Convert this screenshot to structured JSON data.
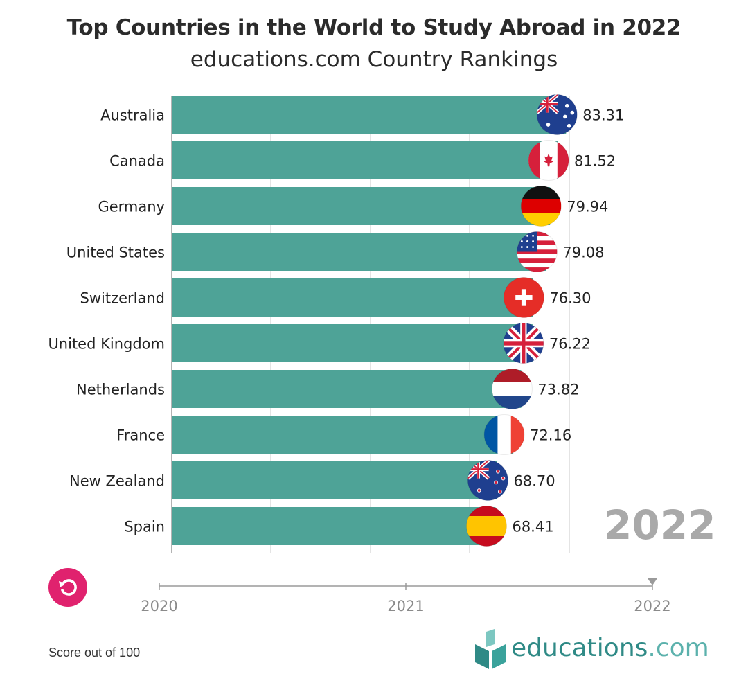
{
  "title": "Top Countries in the World to Study Abroad in 2022",
  "subtitle": "educations.com Country Rankings",
  "current_year": "2022",
  "footnote": "Score out of 100",
  "logo": {
    "main": "educations",
    "suffix": ".com"
  },
  "timeline": {
    "labels": [
      "2020",
      "2021",
      "2022"
    ],
    "position": 1.0
  },
  "colors": {
    "bar": "#4ea397",
    "replay": "#e0226e",
    "year": "#a9a9a9",
    "logo": "#2f8a86"
  },
  "chart_data": {
    "type": "bar",
    "orientation": "horizontal",
    "title": "Top Countries in the World to Study Abroad in 2022",
    "subtitle": "educations.com Country Rankings",
    "categories": [
      "Australia",
      "Canada",
      "Germany",
      "United States",
      "Switzerland",
      "United Kingdom",
      "Netherlands",
      "France",
      "New Zealand",
      "Spain"
    ],
    "values": [
      83.31,
      81.52,
      79.94,
      79.08,
      76.3,
      76.22,
      73.82,
      72.16,
      68.7,
      68.41
    ],
    "value_labels": [
      "83.31",
      "81.52",
      "79.94",
      "79.08",
      "76.30",
      "76.22",
      "73.82",
      "72.16",
      "68.70",
      "68.41"
    ],
    "flags": [
      "australia-flag",
      "canada-flag",
      "germany-flag",
      "usa-flag",
      "switzerland-flag",
      "uk-flag",
      "netherlands-flag",
      "france-flag",
      "new-zealand-flag",
      "spain-flag"
    ],
    "xlim": [
      0,
      84
    ],
    "grid": true,
    "xlabel": "Score out of 100"
  }
}
